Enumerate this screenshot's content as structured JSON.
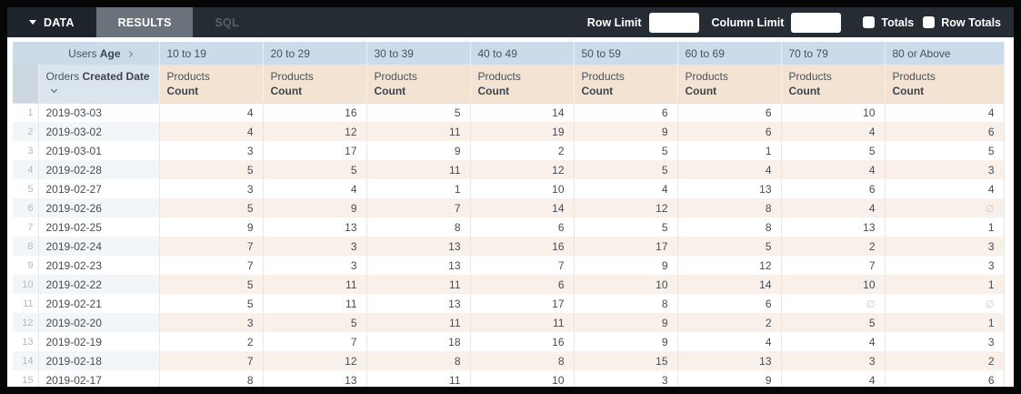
{
  "toolbar": {
    "tabs": [
      {
        "label": "DATA",
        "active": true
      },
      {
        "label": "RESULTS",
        "active": false
      },
      {
        "label": "SQL",
        "active": false
      }
    ],
    "row_limit_label": "Row Limit",
    "row_limit_value": "",
    "column_limit_label": "Column Limit",
    "column_limit_value": "",
    "totals_label": "Totals",
    "totals_checked": false,
    "row_totals_label": "Row Totals",
    "row_totals_checked": false
  },
  "table": {
    "pivot_field": {
      "view": "Users",
      "field": "Age"
    },
    "pivot_columns": [
      "10 to 19",
      "20 to 29",
      "30 to 39",
      "40 to 49",
      "50 to 59",
      "60 to 69",
      "70 to 79",
      "80 or Above"
    ],
    "dimension": {
      "view": "Orders",
      "field": "Created Date",
      "sort": "desc"
    },
    "measure": {
      "view": "Products",
      "field": "Count"
    },
    "null_display": "∅",
    "rows": [
      {
        "index": 1,
        "date": "2019-03-03",
        "values": [
          4,
          16,
          5,
          14,
          6,
          6,
          10,
          4
        ]
      },
      {
        "index": 2,
        "date": "2019-03-02",
        "values": [
          4,
          12,
          11,
          19,
          9,
          6,
          4,
          6
        ]
      },
      {
        "index": 3,
        "date": "2019-03-01",
        "values": [
          3,
          17,
          9,
          2,
          5,
          1,
          5,
          5
        ]
      },
      {
        "index": 4,
        "date": "2019-02-28",
        "values": [
          5,
          5,
          11,
          12,
          5,
          4,
          4,
          3
        ]
      },
      {
        "index": 5,
        "date": "2019-02-27",
        "values": [
          3,
          4,
          1,
          10,
          4,
          13,
          6,
          4
        ]
      },
      {
        "index": 6,
        "date": "2019-02-26",
        "values": [
          5,
          9,
          7,
          14,
          12,
          8,
          4,
          null
        ]
      },
      {
        "index": 7,
        "date": "2019-02-25",
        "values": [
          9,
          13,
          8,
          6,
          5,
          8,
          13,
          1
        ]
      },
      {
        "index": 8,
        "date": "2019-02-24",
        "values": [
          7,
          3,
          13,
          16,
          17,
          5,
          2,
          3
        ]
      },
      {
        "index": 9,
        "date": "2019-02-23",
        "values": [
          7,
          3,
          13,
          7,
          9,
          12,
          7,
          3
        ]
      },
      {
        "index": 10,
        "date": "2019-02-22",
        "values": [
          5,
          11,
          11,
          6,
          10,
          14,
          10,
          1
        ]
      },
      {
        "index": 11,
        "date": "2019-02-21",
        "values": [
          5,
          11,
          13,
          17,
          8,
          6,
          null,
          null
        ]
      },
      {
        "index": 12,
        "date": "2019-02-20",
        "values": [
          3,
          5,
          11,
          11,
          9,
          2,
          5,
          1
        ]
      },
      {
        "index": 13,
        "date": "2019-02-19",
        "values": [
          2,
          7,
          18,
          16,
          9,
          4,
          4,
          3
        ]
      },
      {
        "index": 14,
        "date": "2019-02-18",
        "values": [
          7,
          12,
          8,
          8,
          15,
          13,
          3,
          2
        ]
      },
      {
        "index": 15,
        "date": "2019-02-17",
        "values": [
          8,
          13,
          11,
          10,
          3,
          9,
          4,
          6
        ]
      }
    ]
  },
  "colors": {
    "toolbar_bg": "#252c33",
    "active_tab_bg": "#1e242b",
    "results_tab_bg": "#6a737c",
    "pivot_header_bg": "#ccdbe9",
    "dimension_header_bg": "#dbe5ee",
    "measure_header_bg": "#f3e3d3",
    "even_row_dimension_bg": "#f3f6f8",
    "even_row_measure_bg": "#f8f0e9"
  }
}
